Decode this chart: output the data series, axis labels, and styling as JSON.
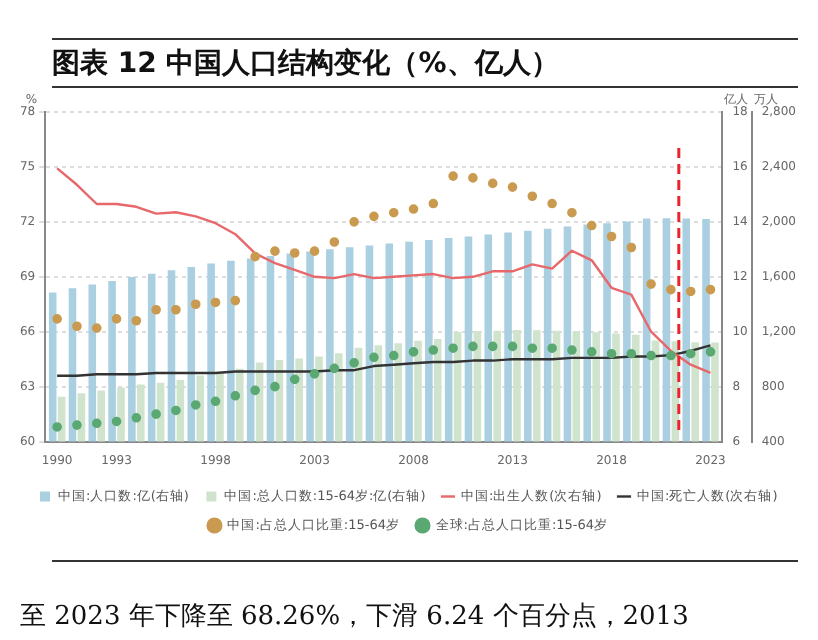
{
  "chart_data": {
    "type": "bar",
    "title": "图表 12 中国人口结构变化（%、亿人）",
    "x": [
      1990,
      1991,
      1992,
      1993,
      1994,
      1995,
      1996,
      1997,
      1998,
      1999,
      2000,
      2001,
      2002,
      2003,
      2004,
      2005,
      2006,
      2007,
      2008,
      2009,
      2010,
      2011,
      2012,
      2013,
      2014,
      2015,
      2016,
      2017,
      2018,
      2019,
      2020,
      2021,
      2022,
      2023
    ],
    "xlim": [
      1989.4,
      2023.6
    ],
    "xticks": [
      1990,
      1993,
      1998,
      2003,
      2008,
      2013,
      2018,
      2023
    ],
    "ylabel": "%",
    "y2label": "亿人",
    "y3label": "万人",
    "ylim": [
      60,
      78
    ],
    "yticks": [
      60,
      63,
      66,
      69,
      72,
      75,
      78
    ],
    "y2lim": [
      6,
      18
    ],
    "y2ticks": [
      6,
      8,
      10,
      12,
      14,
      16,
      18
    ],
    "y3lim": [
      400,
      2800
    ],
    "y3ticks": [
      {
        "value": 400,
        "label": "400"
      },
      {
        "value": 800,
        "label": "800"
      },
      {
        "value": 1200,
        "label": "1,200"
      },
      {
        "value": 1600,
        "label": "1,600"
      },
      {
        "value": 2000,
        "label": "2,000"
      },
      {
        "value": 2400,
        "label": "2,400"
      },
      {
        "value": 2800,
        "label": "2,800"
      }
    ],
    "grid": "y",
    "legend": "bottom",
    "series": [
      {
        "name": "中国:人口数:亿(右轴)",
        "axis": "y2",
        "color": "#a9cfe1",
        "values": [
          11.43,
          11.58,
          11.72,
          11.85,
          11.99,
          12.11,
          12.24,
          12.36,
          12.48,
          12.58,
          12.67,
          12.76,
          12.85,
          12.92,
          13.0,
          13.08,
          13.14,
          13.21,
          13.28,
          13.34,
          13.41,
          13.47,
          13.54,
          13.61,
          13.68,
          13.75,
          13.83,
          13.9,
          13.95,
          14.01,
          14.12,
          14.13,
          14.12,
          14.1
        ]
      },
      {
        "name": "中国:总人口数:15-64岁:亿(右轴)",
        "axis": "y2",
        "color": "#cfe3cd",
        "values": [
          7.63,
          7.76,
          7.86,
          7.97,
          8.08,
          8.14,
          8.24,
          8.41,
          8.54,
          8.65,
          8.88,
          8.97,
          9.03,
          9.1,
          9.22,
          9.42,
          9.51,
          9.58,
          9.67,
          9.74,
          9.99,
          10.03,
          10.04,
          10.06,
          10.05,
          10.04,
          10.03,
          9.98,
          9.94,
          9.89,
          9.68,
          9.65,
          9.62,
          9.61
        ]
      },
      {
        "name": "中国:出生人数(次右轴)",
        "type": "line",
        "axis": "y3",
        "marker": "none",
        "color": "#e8676b",
        "values": [
          2390,
          2270,
          2130,
          2130,
          2110,
          2060,
          2070,
          2040,
          1990,
          1910,
          1770,
          1700,
          1650,
          1600,
          1590,
          1620,
          1590,
          1600,
          1610,
          1620,
          1590,
          1600,
          1640,
          1640,
          1690,
          1660,
          1790,
          1720,
          1520,
          1470,
          1200,
          1060,
          960,
          900
        ]
      },
      {
        "name": "中国:死亡人数(次右轴)",
        "type": "line",
        "axis": "y3",
        "marker": "none",
        "color": "#333333",
        "values": [
          880,
          880,
          890,
          890,
          890,
          900,
          900,
          900,
          900,
          910,
          910,
          910,
          910,
          910,
          920,
          920,
          950,
          960,
          970,
          980,
          980,
          990,
          990,
          1000,
          1000,
          1000,
          1010,
          1010,
          1010,
          1020,
          1020,
          1030,
          1060,
          1100
        ]
      },
      {
        "name": "中国:占总人口比重:15-64岁",
        "type": "scatter",
        "axis": "y",
        "marker": "circle",
        "color": "#c99a4f",
        "values": [
          66.7,
          66.3,
          66.2,
          66.7,
          66.6,
          67.2,
          67.2,
          67.5,
          67.6,
          67.7,
          70.1,
          70.4,
          70.3,
          70.4,
          70.9,
          72.0,
          72.3,
          72.5,
          72.7,
          73.0,
          74.5,
          74.4,
          74.1,
          73.9,
          73.4,
          73.0,
          72.5,
          71.8,
          71.2,
          70.6,
          68.6,
          68.3,
          68.2,
          68.3
        ]
      },
      {
        "name": "全球:占总人口比重:15-64岁",
        "type": "scatter",
        "axis": "y",
        "marker": "circle",
        "color": "#5aa872",
        "values": [
          60.8,
          60.9,
          61.0,
          61.1,
          61.3,
          61.5,
          61.7,
          62.0,
          62.2,
          62.5,
          62.8,
          63.0,
          63.4,
          63.7,
          64.0,
          64.3,
          64.6,
          64.7,
          64.9,
          65.0,
          65.1,
          65.2,
          65.2,
          65.2,
          65.1,
          65.1,
          65.0,
          64.9,
          64.8,
          64.8,
          64.7,
          64.7,
          64.8,
          64.9
        ]
      }
    ],
    "ref_lines": [
      {
        "axis": "x",
        "value": 2021.4,
        "color": "#e8262b",
        "line_style": "dashed"
      }
    ],
    "annotations": [
      "至 2023 年下降至 68.26%，下滑 6.24 个百分点，2013"
    ]
  }
}
